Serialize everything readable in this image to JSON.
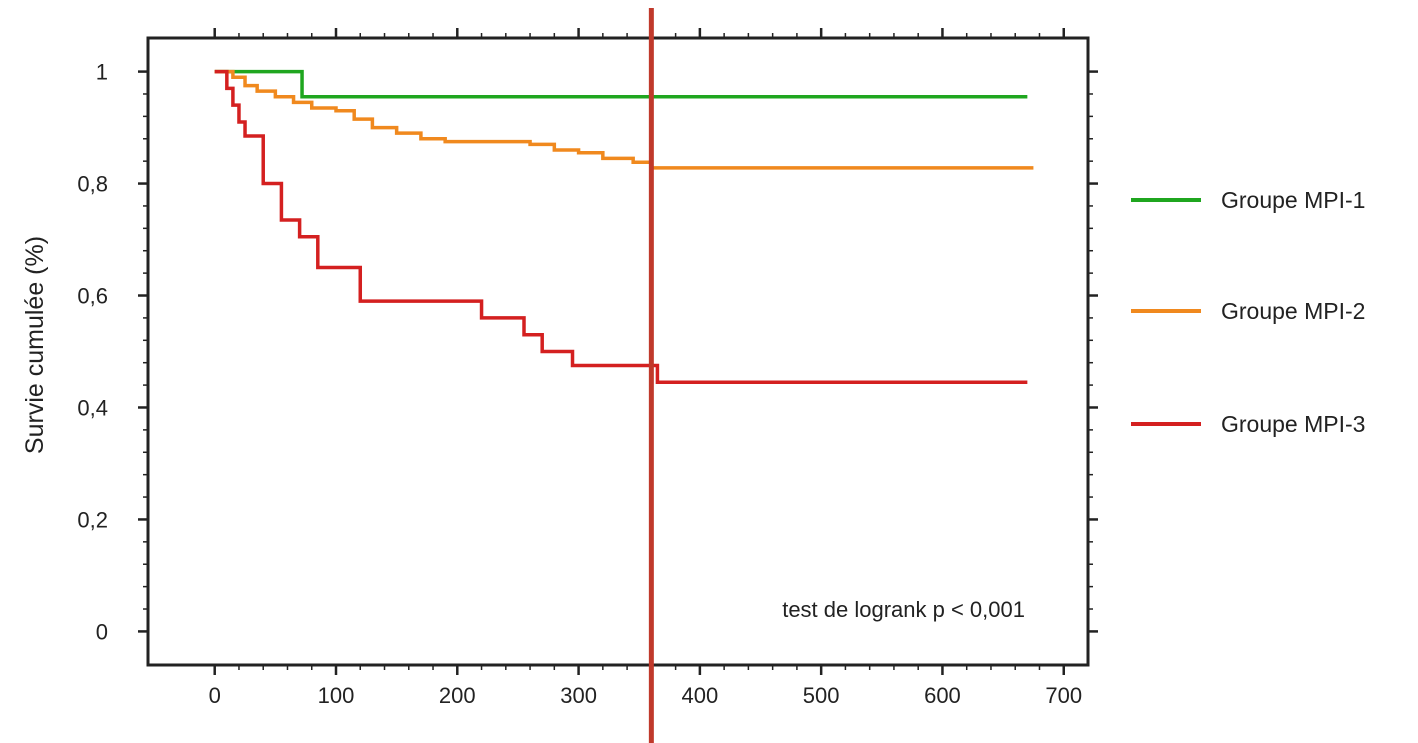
{
  "chart_data": {
    "type": "line",
    "xlabel": "",
    "ylabel": "Survie cumulée (%)",
    "xlim": [
      -55,
      720
    ],
    "ylim": [
      -0.06,
      1.06
    ],
    "x_ticks": [
      0,
      100,
      200,
      300,
      400,
      500,
      600,
      700
    ],
    "x_tick_labels": [
      "0",
      "100",
      "200",
      "300",
      "400",
      "500",
      "600",
      "700"
    ],
    "y_ticks": [
      0,
      0.2,
      0.4,
      0.6,
      0.8,
      1
    ],
    "y_tick_labels": [
      "0",
      "0,2",
      "0,4",
      "0,6",
      "0,8",
      "1"
    ],
    "grid": false,
    "legend_position": "right",
    "annotation": "test de logrank p < 0,001",
    "reference_line_x": 360,
    "series": [
      {
        "name": "Groupe MPI-1",
        "color": "#1fa61f",
        "step": true,
        "points": [
          [
            0,
            1
          ],
          [
            72,
            1
          ],
          [
            72,
            0.955
          ],
          [
            670,
            0.955
          ]
        ]
      },
      {
        "name": "Groupe MPI-2",
        "color": "#f0891e",
        "step": true,
        "points": [
          [
            0,
            1
          ],
          [
            15,
            0.99
          ],
          [
            25,
            0.975
          ],
          [
            35,
            0.965
          ],
          [
            50,
            0.955
          ],
          [
            65,
            0.945
          ],
          [
            80,
            0.935
          ],
          [
            100,
            0.93
          ],
          [
            115,
            0.915
          ],
          [
            130,
            0.9
          ],
          [
            150,
            0.89
          ],
          [
            170,
            0.88
          ],
          [
            190,
            0.875
          ],
          [
            260,
            0.87
          ],
          [
            280,
            0.86
          ],
          [
            300,
            0.855
          ],
          [
            320,
            0.845
          ],
          [
            345,
            0.838
          ],
          [
            360,
            0.828
          ],
          [
            675,
            0.828
          ]
        ]
      },
      {
        "name": "Groupe MPI-3",
        "color": "#d42020",
        "step": true,
        "points": [
          [
            0,
            1
          ],
          [
            10,
            0.97
          ],
          [
            15,
            0.94
          ],
          [
            20,
            0.91
          ],
          [
            25,
            0.885
          ],
          [
            40,
            0.885
          ],
          [
            40,
            0.8
          ],
          [
            55,
            0.8
          ],
          [
            55,
            0.735
          ],
          [
            70,
            0.735
          ],
          [
            70,
            0.705
          ],
          [
            85,
            0.705
          ],
          [
            85,
            0.65
          ],
          [
            120,
            0.65
          ],
          [
            120,
            0.59
          ],
          [
            220,
            0.59
          ],
          [
            220,
            0.56
          ],
          [
            255,
            0.56
          ],
          [
            255,
            0.53
          ],
          [
            270,
            0.53
          ],
          [
            270,
            0.5
          ],
          [
            295,
            0.5
          ],
          [
            295,
            0.475
          ],
          [
            365,
            0.475
          ],
          [
            365,
            0.445
          ],
          [
            670,
            0.445
          ]
        ]
      }
    ]
  }
}
